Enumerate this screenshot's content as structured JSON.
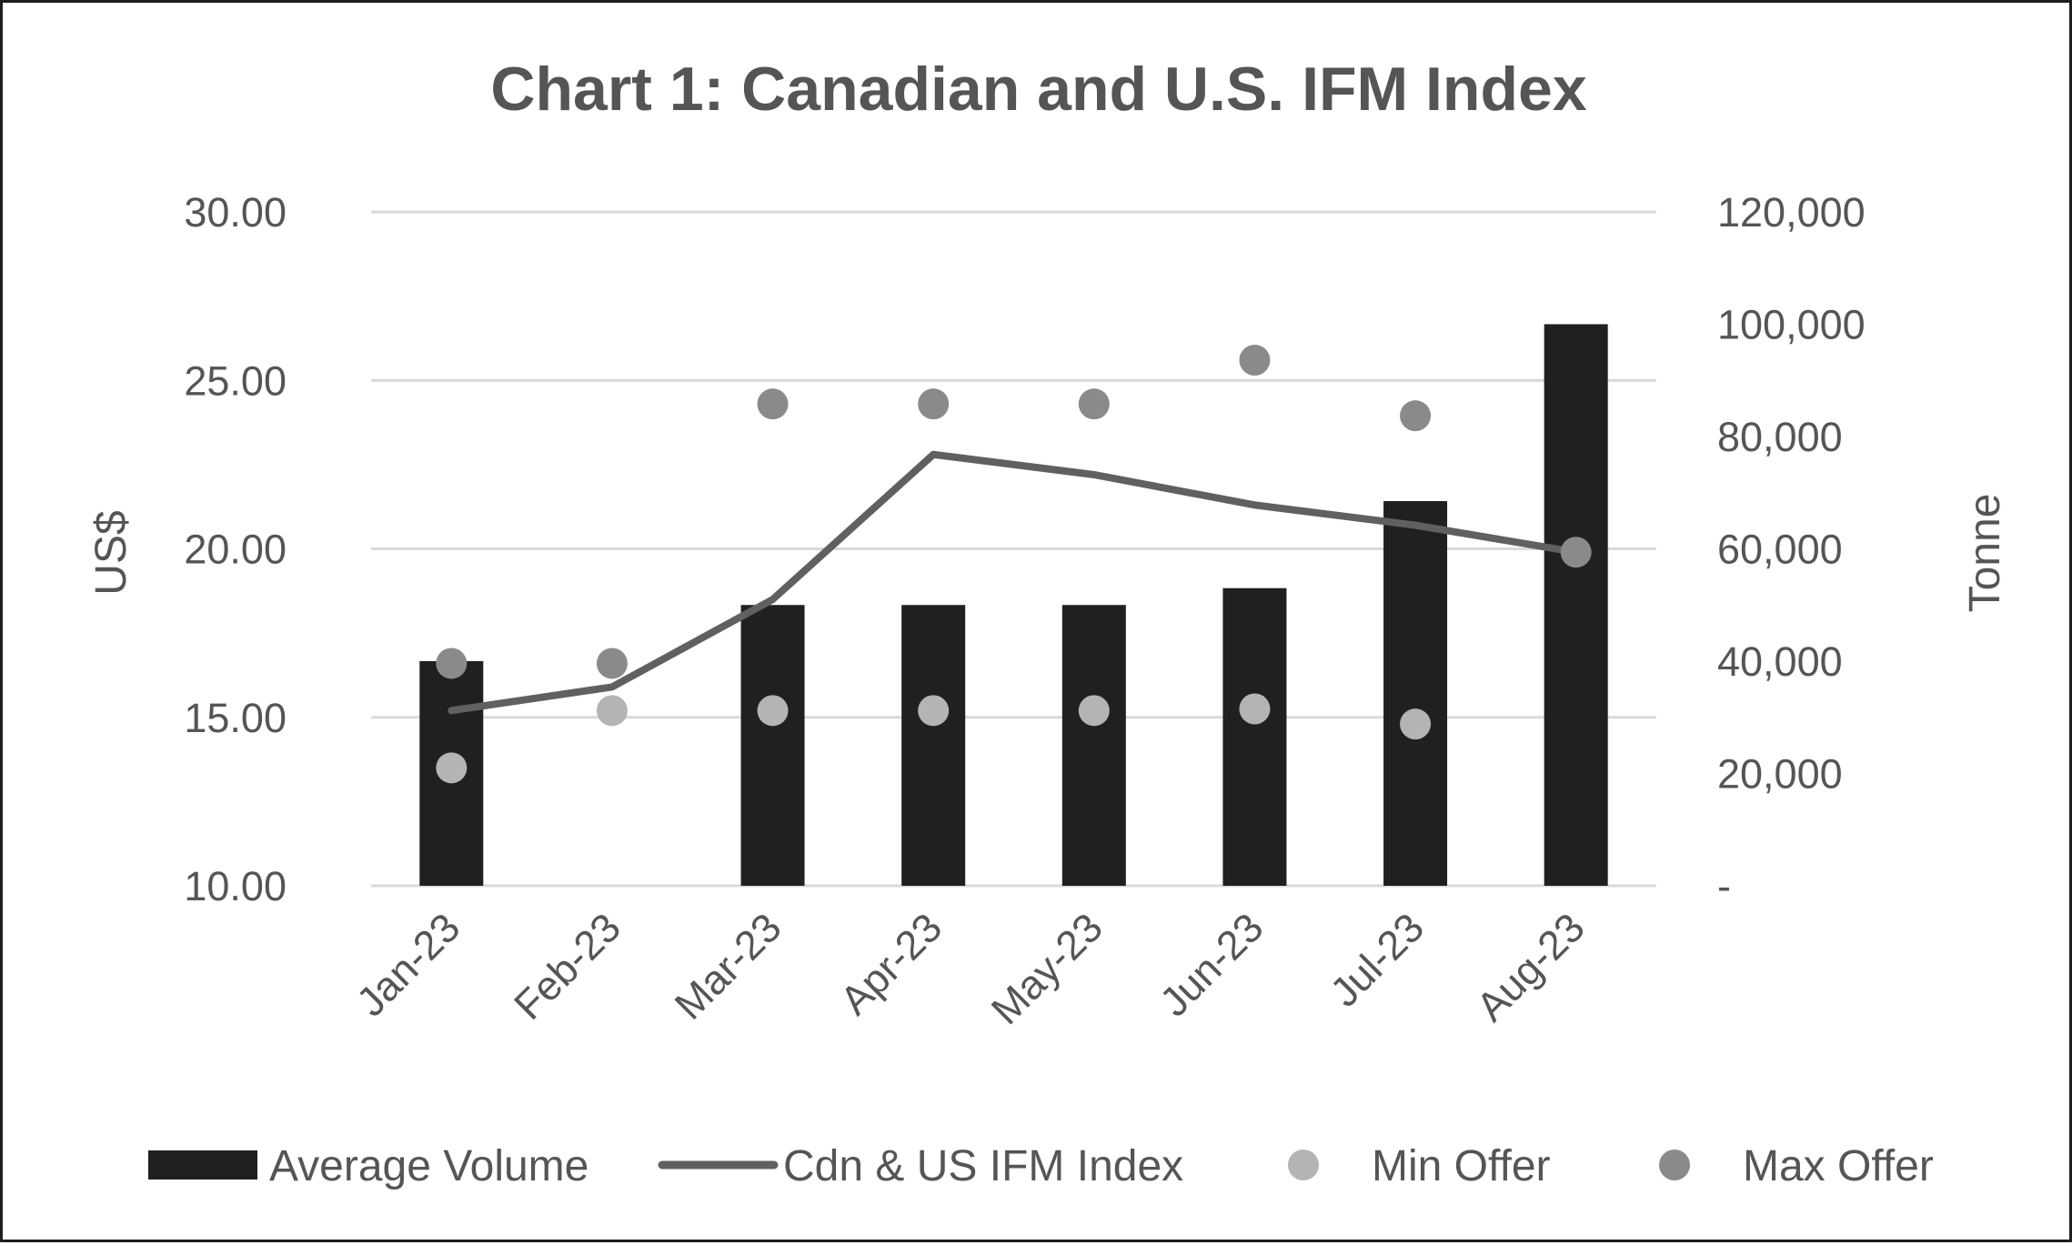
{
  "chart_data": {
    "type": "bar",
    "title": "Chart 1: Canadian and U.S. IFM Index",
    "categories": [
      "Jan-23",
      "Feb-23",
      "Mar-23",
      "Apr-23",
      "May-23",
      "Jun-23",
      "Jul-23",
      "Aug-23"
    ],
    "ylabel_left": "US$",
    "ylabel_right": "Tonne",
    "ylim_left": [
      10,
      30
    ],
    "ylim_right": [
      0,
      120000
    ],
    "y_ticks_left": [
      "10.00",
      "15.00",
      "20.00",
      "25.00",
      "30.00"
    ],
    "y_ticks_right": [
      "-",
      "20,000",
      "40,000",
      "60,000",
      "80,000",
      "100,000",
      "120,000"
    ],
    "grid": true,
    "legend_position": "bottom",
    "series": [
      {
        "name": "Average Volume",
        "kind": "bar",
        "axis": "right",
        "color": "#202020",
        "values": [
          40000,
          null,
          50000,
          50000,
          50000,
          53000,
          68500,
          100000
        ]
      },
      {
        "name": "Cdn & US IFM Index",
        "kind": "line",
        "axis": "left",
        "color": "#606060",
        "values": [
          15.2,
          15.9,
          18.5,
          22.8,
          22.2,
          21.3,
          20.7,
          19.9
        ]
      },
      {
        "name": "Min Offer",
        "kind": "scatter",
        "axis": "left",
        "color": "#b4b4b4",
        "values": [
          13.5,
          15.2,
          15.2,
          15.2,
          15.2,
          15.25,
          14.8,
          null
        ]
      },
      {
        "name": "Max Offer",
        "kind": "scatter",
        "axis": "left",
        "color": "#8a8a8a",
        "values": [
          16.6,
          16.6,
          24.3,
          24.3,
          24.3,
          25.6,
          23.95,
          19.9
        ]
      }
    ]
  }
}
